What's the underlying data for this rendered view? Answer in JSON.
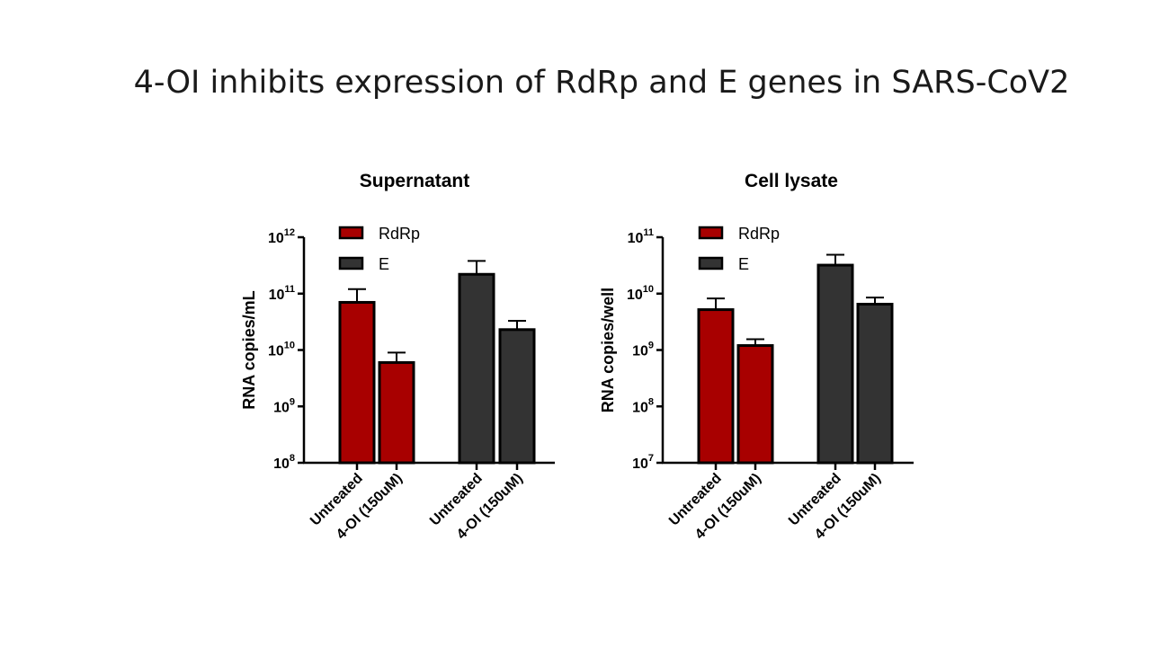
{
  "slide": {
    "title": "4-OI inhibits expression of RdRp and E genes in SARS-CoV2"
  },
  "colors": {
    "rdrp": "#a80000",
    "e": "#333333"
  },
  "chart_data": [
    {
      "type": "bar",
      "title": "Supernatant",
      "ylabel": "RNA copies/mL",
      "yscale": "log",
      "ylim": [
        100000000.0,
        1000000000000.0
      ],
      "yticks": [
        {
          "base": "10",
          "exp": "8",
          "value": 100000000.0
        },
        {
          "base": "10",
          "exp": "9",
          "value": 1000000000.0
        },
        {
          "base": "10",
          "exp": "10",
          "value": 10000000000.0
        },
        {
          "base": "10",
          "exp": "11",
          "value": 100000000000.0
        },
        {
          "base": "10",
          "exp": "12",
          "value": 1000000000000.0
        }
      ],
      "categories": [
        "Untreated",
        "4-OI (150uM)"
      ],
      "series": [
        {
          "name": "RdRp",
          "color": "#a80000",
          "values": [
            70000000000.0,
            6000000000.0
          ],
          "errors": [
            120000000000.0,
            9000000000.0
          ]
        },
        {
          "name": "E",
          "color": "#333333",
          "values": [
            220000000000.0,
            23000000000.0
          ],
          "errors": [
            380000000000.0,
            33000000000.0
          ]
        }
      ],
      "legend": "top-left"
    },
    {
      "type": "bar",
      "title": "Cell lysate",
      "ylabel": "RNA copies/well",
      "yscale": "log",
      "ylim": [
        10000000.0,
        100000000000.0
      ],
      "yticks": [
        {
          "base": "10",
          "exp": "7",
          "value": 10000000.0
        },
        {
          "base": "10",
          "exp": "8",
          "value": 100000000.0
        },
        {
          "base": "10",
          "exp": "9",
          "value": 1000000000.0
        },
        {
          "base": "10",
          "exp": "10",
          "value": 10000000000.0
        },
        {
          "base": "10",
          "exp": "11",
          "value": 100000000000.0
        }
      ],
      "categories": [
        "Untreated",
        "4-OI (150uM)"
      ],
      "series": [
        {
          "name": "RdRp",
          "color": "#a80000",
          "values": [
            5200000000.0,
            1200000000.0
          ],
          "errors": [
            8200000000.0,
            1550000000.0
          ]
        },
        {
          "name": "E",
          "color": "#333333",
          "values": [
            32000000000.0,
            6500000000.0
          ],
          "errors": [
            49000000000.0,
            8500000000.0
          ]
        }
      ],
      "legend": "top-left"
    }
  ]
}
